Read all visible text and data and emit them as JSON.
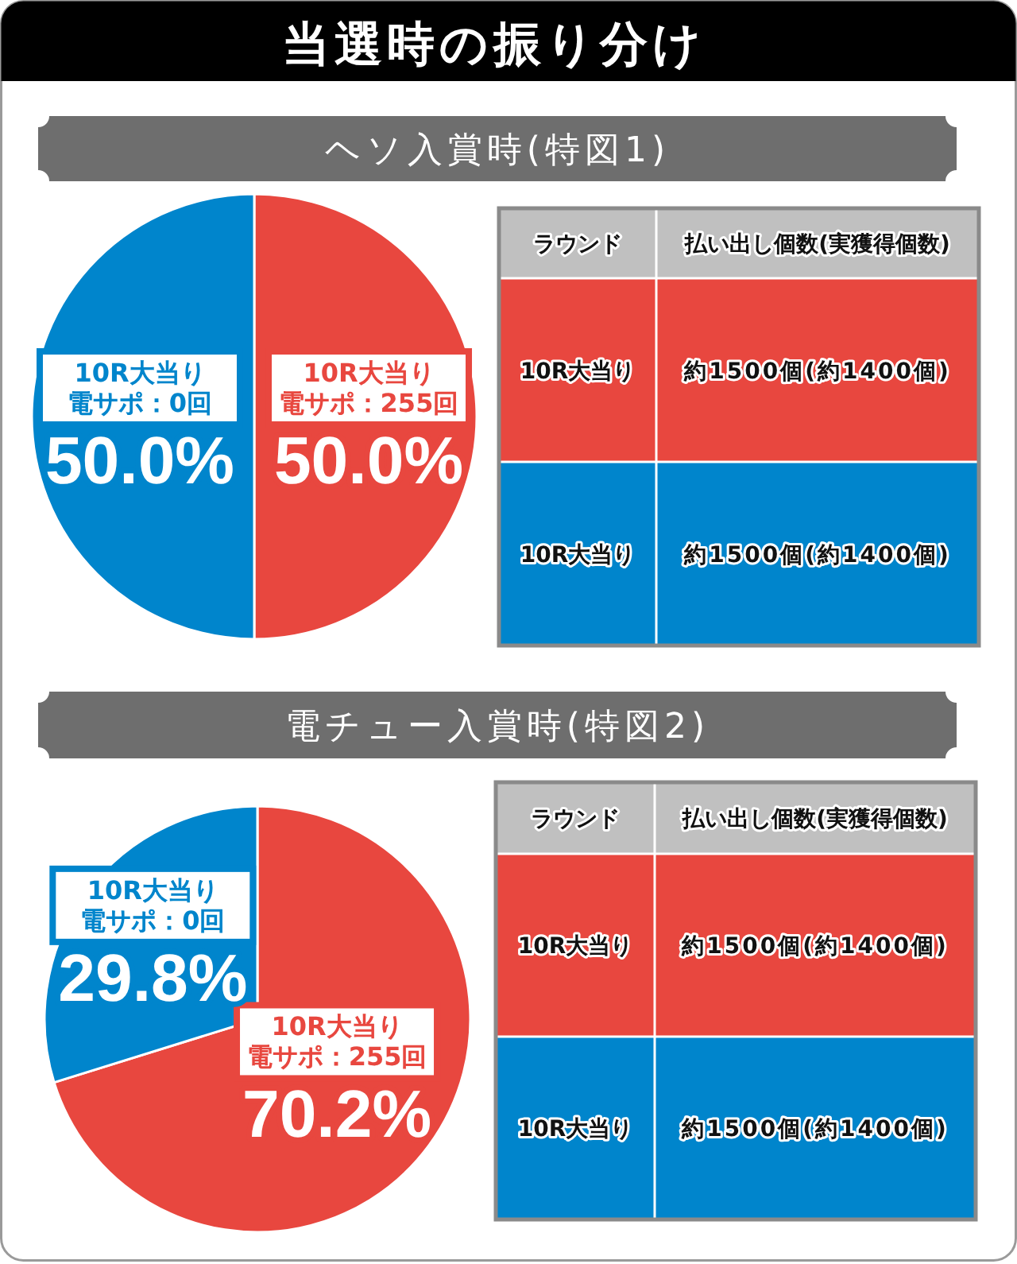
{
  "chart_data": [
    {
      "type": "pie",
      "title": "当選時の振り分け",
      "subtitle": "ヘソ入賞時(特図1)",
      "categories": [
        "電サポ：255回",
        "電サポ：0回"
      ],
      "series": [
        {
          "name": "10R大当り",
          "values": [
            50.0,
            50.0
          ],
          "value_labels": [
            "50.0%",
            "50.0%"
          ]
        }
      ],
      "colors": [
        "#e8473f",
        "#0085cc"
      ]
    },
    {
      "type": "other",
      "categories": [
        "ラウンド",
        "払い出し個数(実獲得個数)"
      ],
      "y_categories": [
        "10R大当り",
        "10R大当り"
      ],
      "cell_labels": [
        [
          "約1500個(約1400個)"
        ],
        [
          "約1500個(約1400個)"
        ]
      ],
      "colors": [
        "#c0c0c0",
        "#e8473f",
        "#0085cc"
      ]
    },
    {
      "type": "pie",
      "title": "電チュー入賞時(特図2)",
      "categories": [
        "電サポ：255回",
        "電サポ：0回"
      ],
      "series": [
        {
          "name": "10R大当り",
          "values": [
            70.2,
            29.8
          ],
          "value_labels": [
            "70.2%",
            "29.8%"
          ]
        }
      ],
      "colors": [
        "#e8473f",
        "#0085cc"
      ]
    },
    {
      "type": "other",
      "categories": [
        "ラウンド",
        "払い出し個数(実獲得個数)"
      ],
      "y_categories": [
        "10R大当り",
        "10R大当り"
      ],
      "cell_labels": [
        [
          "約1500個(約1400個)"
        ],
        [
          "約1500個(約1400個)"
        ]
      ],
      "colors": [
        "#c0c0c0",
        "#e8473f",
        "#0085cc"
      ]
    }
  ]
}
